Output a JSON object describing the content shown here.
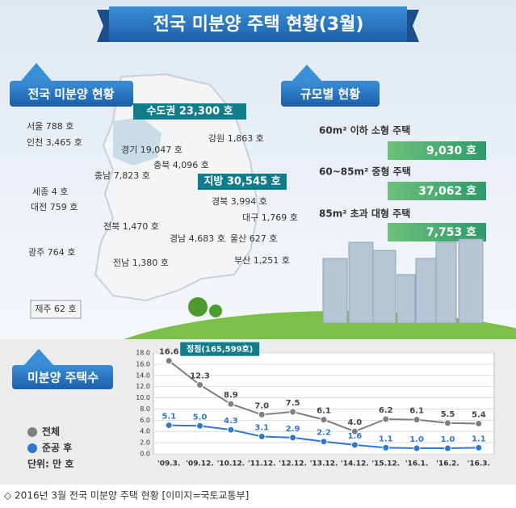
{
  "title": "전국 미분양 주택 현황(3월)",
  "map": {
    "heading": "전국 미분양 현황",
    "capital": "수도권 23,300 호",
    "local": "지방 30,545 호",
    "regions": [
      "서울 788 호",
      "인천 3,465 호",
      "경기 19,047 호",
      "강원 1,863 호",
      "충북 4,096 호",
      "충남 7,823 호",
      "세종  4 호",
      "대전 759 호",
      "경북 3,994 호",
      "대구  1,769 호",
      "전북 1,470 호",
      "경남 4,683 호",
      "울산 627 호",
      "광주 764 호",
      "전남 1,380 호",
      "부산 1,251 호",
      "제주 62 호"
    ]
  },
  "size": {
    "heading": "규모별 현황",
    "items": [
      {
        "label": "60m² 이하 소형 주택",
        "value": "9,030 호"
      },
      {
        "label": "60~85m²  중형 주택",
        "value": "37,062 호"
      },
      {
        "label": "85m² 초과 대형 주택",
        "value": "7,753 호"
      }
    ]
  },
  "chart_data": {
    "type": "line",
    "title": "미분양  주택수",
    "unit": "단위: 만 호",
    "annotation": "정점(165,599호)",
    "categories": [
      "'09.3.",
      "'09.12.",
      "'10.12.",
      "'11.12.",
      "'12.12.",
      "'13.12.",
      "'14.12.",
      "'15.12.",
      "'16.1.",
      "'16.2.",
      "'16.3."
    ],
    "series": [
      {
        "name": "전체",
        "color": "#7f7f7f",
        "values": [
          16.6,
          12.3,
          8.9,
          7.0,
          7.5,
          6.1,
          4.0,
          6.2,
          6.1,
          5.5,
          5.4
        ],
        "value_labels": [
          "16.6",
          "12.3",
          "8.9",
          "7.0",
          "7.5",
          "6.1",
          "4.0",
          "6.2",
          "6.1",
          "5.5",
          "5.4"
        ]
      },
      {
        "name": "준공 후",
        "color": "#2f78cc",
        "values": [
          5.1,
          5.0,
          4.3,
          3.1,
          2.9,
          2.2,
          1.6,
          1.1,
          1.0,
          1.0,
          1.1
        ],
        "value_labels": [
          "5.1",
          "5.0",
          "4.3",
          "3.1",
          "2.9",
          "2.2",
          "1.6",
          "1.1",
          "1.0",
          "1.0",
          "1.1"
        ]
      }
    ],
    "ylim": [
      0,
      18
    ],
    "yticks": [
      {
        "value": 0,
        "label": "0.0"
      },
      {
        "value": 2,
        "label": "2.0"
      },
      {
        "value": 4,
        "label": "4.0"
      },
      {
        "value": 6,
        "label": "6.0"
      },
      {
        "value": 8,
        "label": "8.0"
      },
      {
        "value": 10,
        "label": "10.0"
      },
      {
        "value": 12,
        "label": "12.0"
      },
      {
        "value": 14,
        "label": "14.0"
      },
      {
        "value": 16,
        "label": "16.0"
      },
      {
        "value": 18,
        "label": "18.0"
      }
    ],
    "grid": true
  },
  "caption": "◇ 2016년 3월 전국 미분양 주택 현황 [이미지=국토교통부]"
}
